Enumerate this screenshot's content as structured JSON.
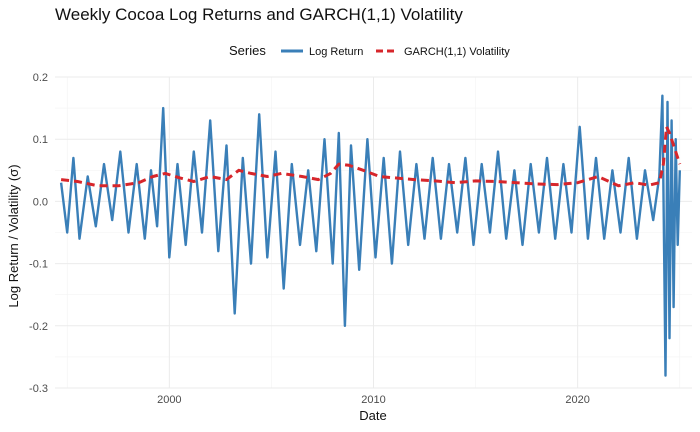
{
  "chart_data": {
    "type": "line",
    "title": "Weekly Cocoa Log Returns and GARCH(1,1) Volatility",
    "xlabel": "Date",
    "ylabel": "Log Return / Volatility (σ)",
    "xlim": [
      1994.4,
      2025.6
    ],
    "ylim": [
      -0.3,
      0.2
    ],
    "x_ticks": [
      2000,
      2010,
      2020
    ],
    "x_tick_labels": [
      "2000",
      "2010",
      "2020"
    ],
    "y_ticks": [
      -0.3,
      -0.2,
      -0.1,
      0.0,
      0.1,
      0.2
    ],
    "y_tick_labels": [
      "-0.3",
      "-0.2",
      "-0.1",
      "0.0",
      "0.1",
      "0.2"
    ],
    "grid": true,
    "legend": {
      "title": "Series",
      "position": "top",
      "entries": [
        "Log Return",
        "GARCH(1,1) Volatility"
      ]
    },
    "series": [
      {
        "name": "Log Return",
        "color": "#3a7fb8",
        "style": "solid",
        "x": [
          1994.7,
          1995.0,
          1995.3,
          1995.6,
          1996.0,
          1996.4,
          1996.8,
          1997.2,
          1997.6,
          1998.0,
          1998.4,
          1998.8,
          1999.1,
          1999.4,
          1999.7,
          2000.0,
          2000.4,
          2000.8,
          2001.2,
          2001.6,
          2002.0,
          2002.4,
          2002.8,
          2003.2,
          2003.6,
          2004.0,
          2004.4,
          2004.8,
          2005.2,
          2005.6,
          2006.0,
          2006.4,
          2006.8,
          2007.2,
          2007.6,
          2008.0,
          2008.3,
          2008.6,
          2008.9,
          2009.3,
          2009.7,
          2010.1,
          2010.5,
          2010.9,
          2011.3,
          2011.7,
          2012.1,
          2012.5,
          2012.9,
          2013.3,
          2013.7,
          2014.1,
          2014.5,
          2014.9,
          2015.3,
          2015.7,
          2016.1,
          2016.5,
          2016.9,
          2017.3,
          2017.7,
          2018.1,
          2018.5,
          2018.9,
          2019.3,
          2019.7,
          2020.1,
          2020.5,
          2020.9,
          2021.3,
          2021.7,
          2022.1,
          2022.5,
          2022.9,
          2023.3,
          2023.7,
          2024.0,
          2024.15,
          2024.3,
          2024.4,
          2024.5,
          2024.6,
          2024.7,
          2024.8,
          2024.9,
          2025.0
        ],
        "y": [
          0.03,
          -0.05,
          0.07,
          -0.06,
          0.04,
          -0.04,
          0.06,
          -0.03,
          0.08,
          -0.05,
          0.06,
          -0.06,
          0.05,
          -0.04,
          0.15,
          -0.09,
          0.06,
          -0.07,
          0.08,
          -0.05,
          0.13,
          -0.08,
          0.09,
          -0.18,
          0.07,
          -0.1,
          0.14,
          -0.09,
          0.08,
          -0.14,
          0.06,
          -0.07,
          0.05,
          -0.08,
          0.1,
          -0.1,
          0.11,
          -0.2,
          0.09,
          -0.11,
          0.1,
          -0.09,
          0.07,
          -0.1,
          0.08,
          -0.07,
          0.06,
          -0.06,
          0.07,
          -0.06,
          0.06,
          -0.05,
          0.07,
          -0.07,
          0.06,
          -0.05,
          0.08,
          -0.06,
          0.05,
          -0.07,
          0.06,
          -0.05,
          0.07,
          -0.06,
          0.06,
          -0.05,
          0.12,
          -0.06,
          0.07,
          -0.06,
          0.05,
          -0.05,
          0.07,
          -0.06,
          0.05,
          -0.03,
          0.04,
          0.17,
          -0.28,
          0.16,
          -0.22,
          0.13,
          -0.17,
          0.1,
          -0.07,
          0.05
        ]
      },
      {
        "name": "GARCH(1,1) Volatility",
        "color": "#d7262b",
        "style": "dashed",
        "x": [
          1994.7,
          1995.5,
          1996.5,
          1997.5,
          1998.5,
          1999.2,
          1999.8,
          2000.5,
          2001.2,
          2002.0,
          2002.8,
          2003.4,
          2004.0,
          2004.8,
          2005.5,
          2006.5,
          2007.3,
          2007.9,
          2008.3,
          2008.8,
          2009.5,
          2010.3,
          2011.0,
          2012.0,
          2013.0,
          2014.0,
          2015.0,
          2016.0,
          2017.0,
          2018.0,
          2019.0,
          2020.0,
          2021.0,
          2022.0,
          2022.8,
          2023.5,
          2024.0,
          2024.2,
          2024.35,
          2024.5,
          2024.7,
          2025.0
        ],
        "y": [
          0.035,
          0.032,
          0.025,
          0.025,
          0.03,
          0.04,
          0.045,
          0.038,
          0.032,
          0.04,
          0.035,
          0.05,
          0.045,
          0.04,
          0.045,
          0.04,
          0.035,
          0.045,
          0.06,
          0.058,
          0.05,
          0.04,
          0.038,
          0.035,
          0.033,
          0.03,
          0.033,
          0.032,
          0.03,
          0.028,
          0.027,
          0.03,
          0.04,
          0.025,
          0.03,
          0.026,
          0.03,
          0.06,
          0.12,
          0.11,
          0.09,
          0.06
        ]
      }
    ]
  }
}
